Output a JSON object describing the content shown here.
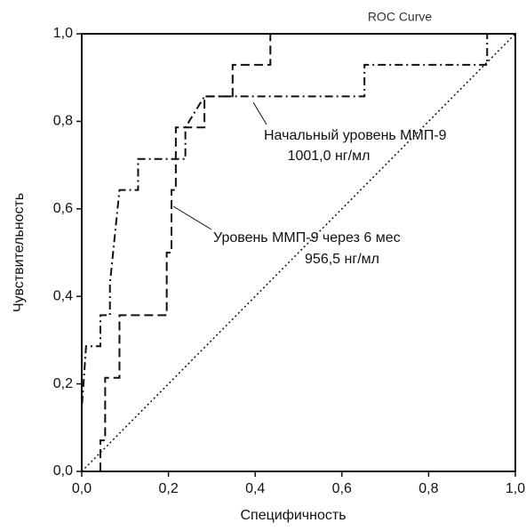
{
  "chart_data": {
    "type": "line",
    "title": "ROC Curve",
    "x_label": "Специфичность",
    "y_label": "Чувствительность",
    "xlim": [
      0,
      1
    ],
    "ylim": [
      0,
      1
    ],
    "xticks": [
      {
        "value": 0,
        "label": "0,0"
      },
      {
        "value": 0.2,
        "label": "0,2"
      },
      {
        "value": 0.4,
        "label": "0,4"
      },
      {
        "value": 0.6,
        "label": "0,6"
      },
      {
        "value": 0.8,
        "label": "0,8"
      },
      {
        "value": 1,
        "label": "1,0"
      }
    ],
    "yticks": [
      {
        "value": 0,
        "label": "0,0"
      },
      {
        "value": 0.2,
        "label": "0,2"
      },
      {
        "value": 0.4,
        "label": "0,4"
      },
      {
        "value": 0.6,
        "label": "0,6"
      },
      {
        "value": 0.8,
        "label": "0,8"
      },
      {
        "value": 1,
        "label": "1,0"
      }
    ],
    "series": [
      {
        "name": "Начальный уровень ММП-9",
        "annotation": "1001,0 нг/мл",
        "color": "#111111",
        "dash": "9 4 2 4",
        "x": [
          0,
          0,
          0.01,
          0.043,
          0.043,
          0.065,
          0.065,
          0.087,
          0.13,
          0.13,
          0.239,
          0.239,
          0.283,
          0.652,
          0.652,
          0.935,
          0.935,
          1
        ],
        "values": [
          0,
          0.143,
          0.286,
          0.286,
          0.357,
          0.357,
          0.429,
          0.643,
          0.643,
          0.714,
          0.714,
          0.786,
          0.857,
          0.857,
          0.929,
          0.929,
          1,
          1
        ]
      },
      {
        "name": "Уровень ММП-9 через 6 мес",
        "annotation": "956,5 нг/мл",
        "color": "#111111",
        "dash": "10 5",
        "x": [
          0.043,
          0.043,
          0.054,
          0.054,
          0.087,
          0.087,
          0.196,
          0.196,
          0.207,
          0.207,
          0.217,
          0.217,
          0.283,
          0.283,
          0.348,
          0.348,
          0.435,
          0.435,
          1
        ],
        "values": [
          0,
          0.071,
          0.071,
          0.214,
          0.214,
          0.357,
          0.357,
          0.5,
          0.5,
          0.643,
          0.643,
          0.786,
          0.786,
          0.857,
          0.857,
          0.929,
          0.929,
          1,
          1
        ]
      }
    ]
  }
}
